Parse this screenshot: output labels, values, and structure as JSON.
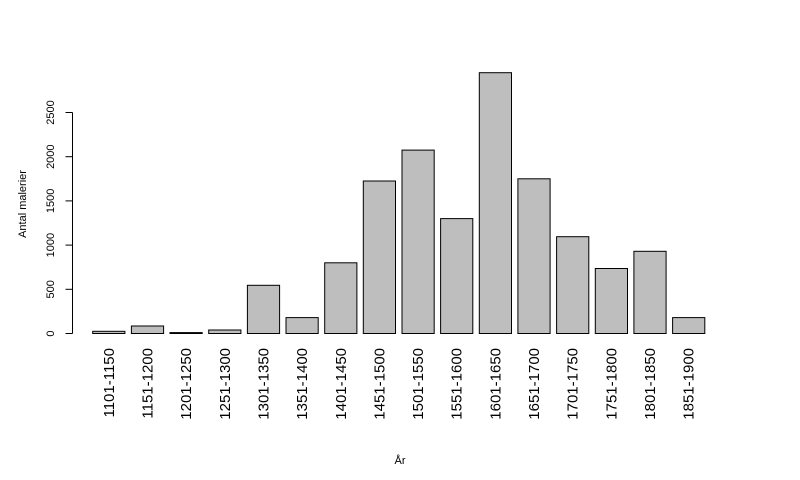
{
  "chart_data": {
    "type": "bar",
    "title": "",
    "xlabel": "År",
    "ylabel": "Antal malerier",
    "categories": [
      "1101-1150",
      "1151-1200",
      "1201-1250",
      "1251-1300",
      "1301-1350",
      "1351-1400",
      "1401-1450",
      "1451-1500",
      "1501-1550",
      "1551-1600",
      "1601-1650",
      "1651-1700",
      "1701-1750",
      "1751-1800",
      "1801-1850",
      "1851-1900"
    ],
    "values": [
      25,
      85,
      10,
      40,
      545,
      180,
      800,
      1725,
      2075,
      1300,
      2950,
      1750,
      1095,
      735,
      930,
      180
    ],
    "yticks": [
      0,
      500,
      1000,
      1500,
      2000,
      2500
    ],
    "ylim": [
      0,
      2950
    ],
    "grid": false,
    "legend": "none",
    "colors": {
      "bar_fill": "#bebebe",
      "bar_stroke": "#000000"
    }
  }
}
